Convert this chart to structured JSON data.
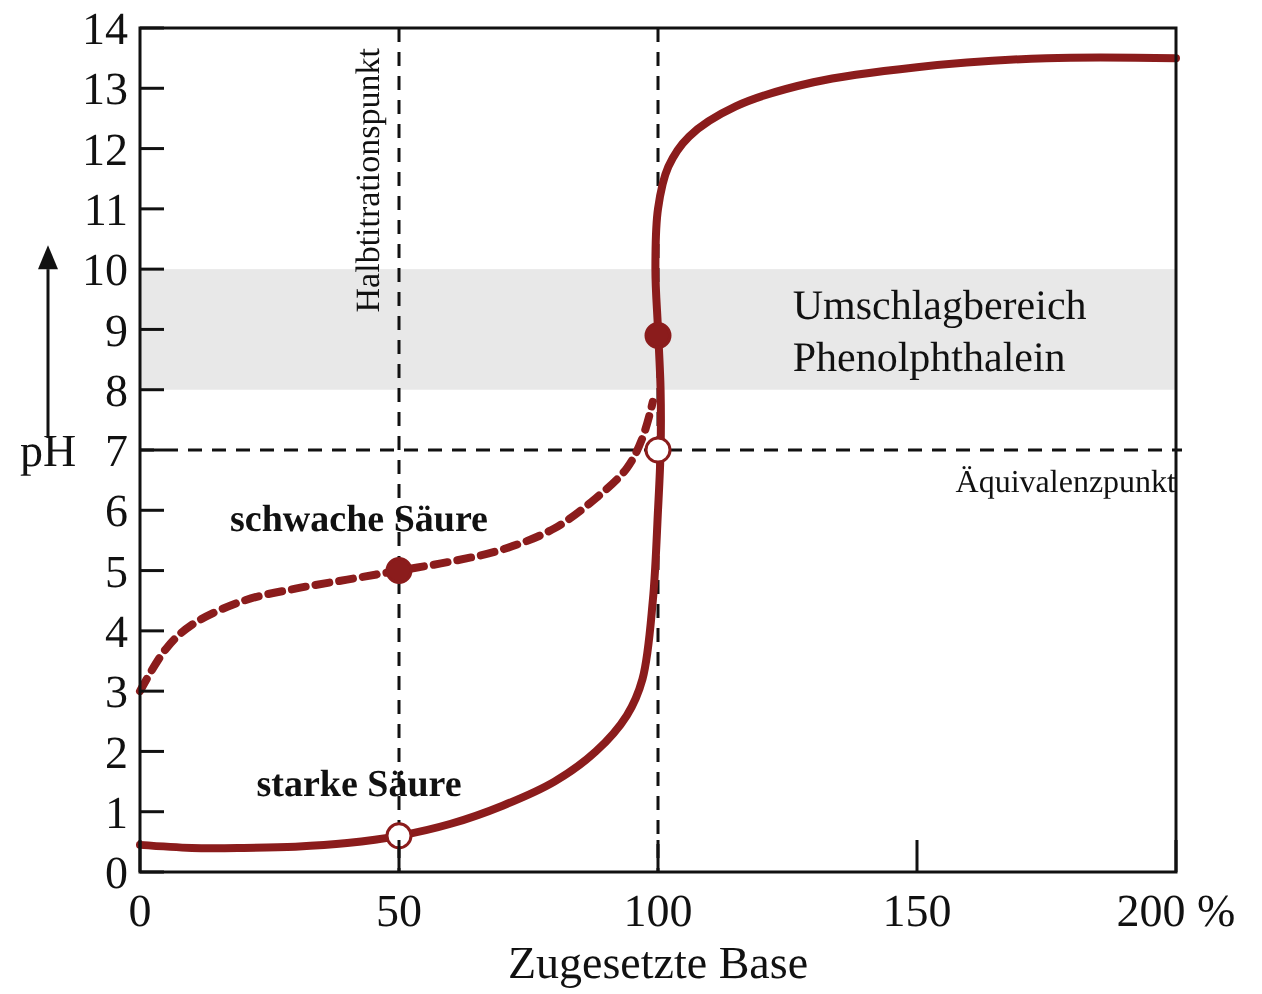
{
  "chart_data": {
    "type": "line",
    "xlabel": "Zugesetzte Base",
    "ylabel": "pH",
    "xlim": [
      0,
      200
    ],
    "xticks": [
      0,
      50,
      100,
      150,
      {
        "value": 200,
        "label": "200 %"
      }
    ],
    "ylim": [
      0,
      14
    ],
    "yticks": [
      0,
      1,
      2,
      3,
      4,
      5,
      6,
      7,
      8,
      9,
      10,
      11,
      12,
      13,
      14
    ],
    "grid": false,
    "series": [
      {
        "name": "starke Säure",
        "color": "#8b1c1c",
        "line_style": "solid",
        "x": [
          0,
          10,
          20,
          30,
          40,
          50,
          60,
          70,
          80,
          88,
          94,
          97,
          99,
          100,
          100.5,
          100.5,
          100,
          99.5,
          100,
          102,
          106,
          115,
          130,
          150,
          175,
          200
        ],
        "values": [
          0.45,
          0.4,
          0.4,
          0.42,
          0.48,
          0.6,
          0.8,
          1.1,
          1.5,
          2.0,
          2.6,
          3.2,
          4.5,
          6,
          7,
          8,
          9,
          10,
          11,
          11.7,
          12.2,
          12.7,
          13.1,
          13.35,
          13.5,
          13.5
        ]
      },
      {
        "name": "schwache Säure",
        "color": "#8b1c1c",
        "line_style": "dashed",
        "x": [
          0,
          5,
          10,
          20,
          30,
          40,
          50,
          60,
          70,
          80,
          88,
          94,
          97,
          99
        ],
        "values": [
          3,
          3.7,
          4.1,
          4.5,
          4.7,
          4.85,
          5,
          5.15,
          5.35,
          5.7,
          6.2,
          6.7,
          7.2,
          7.8
        ]
      },
      {
        "type": "scatter",
        "color": "#8b1c1c",
        "marker": "circle",
        "x": [
          50,
          100
        ],
        "values": [
          5,
          8.9
        ]
      },
      {
        "type": "scatter",
        "color": "#ffffff",
        "marker": "circle",
        "x": [
          50,
          100
        ],
        "values": [
          0.6,
          7
        ]
      }
    ],
    "ref_lines": [
      {
        "axis": "x",
        "value": 50,
        "label": "Halbtitrationspunkt",
        "line_style": "dashed"
      },
      {
        "axis": "x",
        "value": 100,
        "line_style": "dashed"
      },
      {
        "axis": "y",
        "value": 7,
        "label": "Äquivalenzpunkt",
        "line_style": "dashed"
      }
    ],
    "bands": [
      {
        "axis": "y",
        "from": 8,
        "to": 10,
        "label": "Umschlagbereich Phenolphthalein",
        "color": "#e8e8e8"
      }
    ]
  }
}
